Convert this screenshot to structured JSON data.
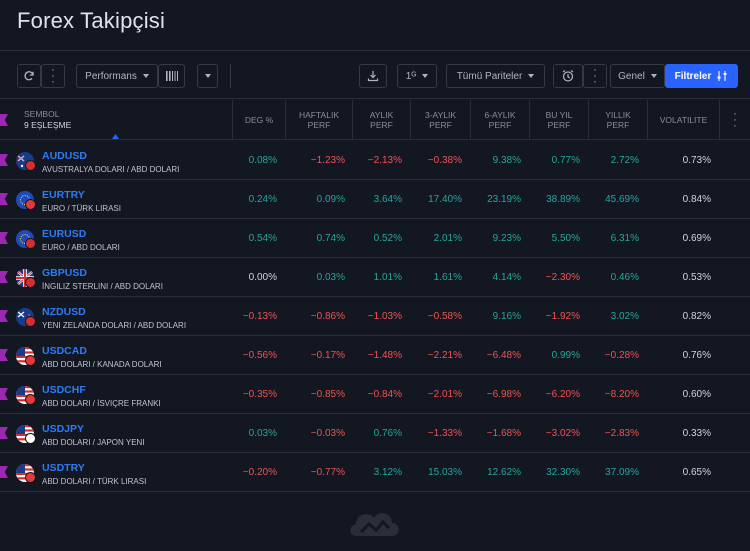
{
  "page": {
    "title": "Forex Takipçisi"
  },
  "toolbar": {
    "preset_label": "Performans",
    "interval_label": "1ᴳ",
    "pairs_label": "Tümü Pariteler",
    "view_label": "Genel",
    "filters_label": "Filtreler"
  },
  "columns": {
    "symbol_title": "SEMBOL",
    "symbol_count": "9 EŞLEŞME",
    "chg": "DEG %",
    "weekly_1": "HAFTALIK",
    "weekly_2": "PERF",
    "monthly_1": "AYLIK",
    "monthly_2": "PERF",
    "m3_1": "3-AYLIK",
    "m3_2": "PERF",
    "m6_1": "6-AYLIK",
    "m6_2": "PERF",
    "ytd_1": "BU YIL",
    "ytd_2": "PERF",
    "year_1": "YILLIK",
    "year_2": "PERF",
    "volatility": "VOLATILITE"
  },
  "rows": [
    {
      "symbol": "AUDUSD",
      "desc": "AVUSTRALYA DOLARI / ABD DOLARI",
      "flag": "au",
      "chg": "0.08%",
      "w": "−1.23%",
      "m": "−2.13%",
      "m3": "−0.38%",
      "m6": "9.38%",
      "ytd": "0.77%",
      "y": "2.72%",
      "vol": "0.73%"
    },
    {
      "symbol": "EURTRY",
      "desc": "EURO / TÜRK LIRASI",
      "flag": "eu",
      "chg": "0.24%",
      "w": "0.09%",
      "m": "3.64%",
      "m3": "17.40%",
      "m6": "23.19%",
      "ytd": "38.89%",
      "y": "45.69%",
      "vol": "0.84%"
    },
    {
      "symbol": "EURUSD",
      "desc": "EURO / ABD DOLARI",
      "flag": "eu",
      "chg": "0.54%",
      "w": "0.74%",
      "m": "0.52%",
      "m3": "2.01%",
      "m6": "9.23%",
      "ytd": "5.50%",
      "y": "6.31%",
      "vol": "0.69%"
    },
    {
      "symbol": "GBPUSD",
      "desc": "İNGILIZ STERLINI / ABD DOLARI",
      "flag": "gb",
      "chg": "0.00%",
      "w": "0.03%",
      "m": "1.01%",
      "m3": "1.61%",
      "m6": "4.14%",
      "ytd": "−2.30%",
      "y": "0.46%",
      "vol": "0.53%"
    },
    {
      "symbol": "NZDUSD",
      "desc": "YENI ZELANDA DOLARI / ABD DOLARI",
      "flag": "nz",
      "chg": "−0.13%",
      "w": "−0.86%",
      "m": "−1.03%",
      "m3": "−0.58%",
      "m6": "9.16%",
      "ytd": "−1.92%",
      "y": "3.02%",
      "vol": "0.82%"
    },
    {
      "symbol": "USDCAD",
      "desc": "ABD DOLARI / KANADA DOLARI",
      "flag": "us",
      "chg": "−0.56%",
      "w": "−0.17%",
      "m": "−1.48%",
      "m3": "−2.21%",
      "m6": "−6.48%",
      "ytd": "0.99%",
      "y": "−0.28%",
      "vol": "0.76%"
    },
    {
      "symbol": "USDCHF",
      "desc": "ABD DOLARI / İSVIÇRE FRANKI",
      "flag": "us",
      "chg": "−0.35%",
      "w": "−0.85%",
      "m": "−0.84%",
      "m3": "−2.01%",
      "m6": "−6.98%",
      "ytd": "−6.20%",
      "y": "−8.20%",
      "vol": "0.60%"
    },
    {
      "symbol": "USDJPY",
      "desc": "ABD DOLARI / JAPON YENI",
      "flag": "us",
      "chg": "0.03%",
      "w": "−0.03%",
      "m": "0.76%",
      "m3": "−1.33%",
      "m6": "−1.68%",
      "ytd": "−3.02%",
      "y": "−2.83%",
      "vol": "0.33%"
    },
    {
      "symbol": "USDTRY",
      "desc": "ABD DOLARI / TÜRK LIRASI",
      "flag": "us",
      "chg": "−0.20%",
      "w": "−0.77%",
      "m": "3.12%",
      "m3": "15.03%",
      "m6": "12.62%",
      "ytd": "32.30%",
      "y": "37.09%",
      "vol": "0.65%"
    }
  ],
  "colors": {
    "positive": "#26a69a",
    "negative": "#ef5350",
    "accent": "#2962ff",
    "symbol": "#2d7cf6"
  }
}
